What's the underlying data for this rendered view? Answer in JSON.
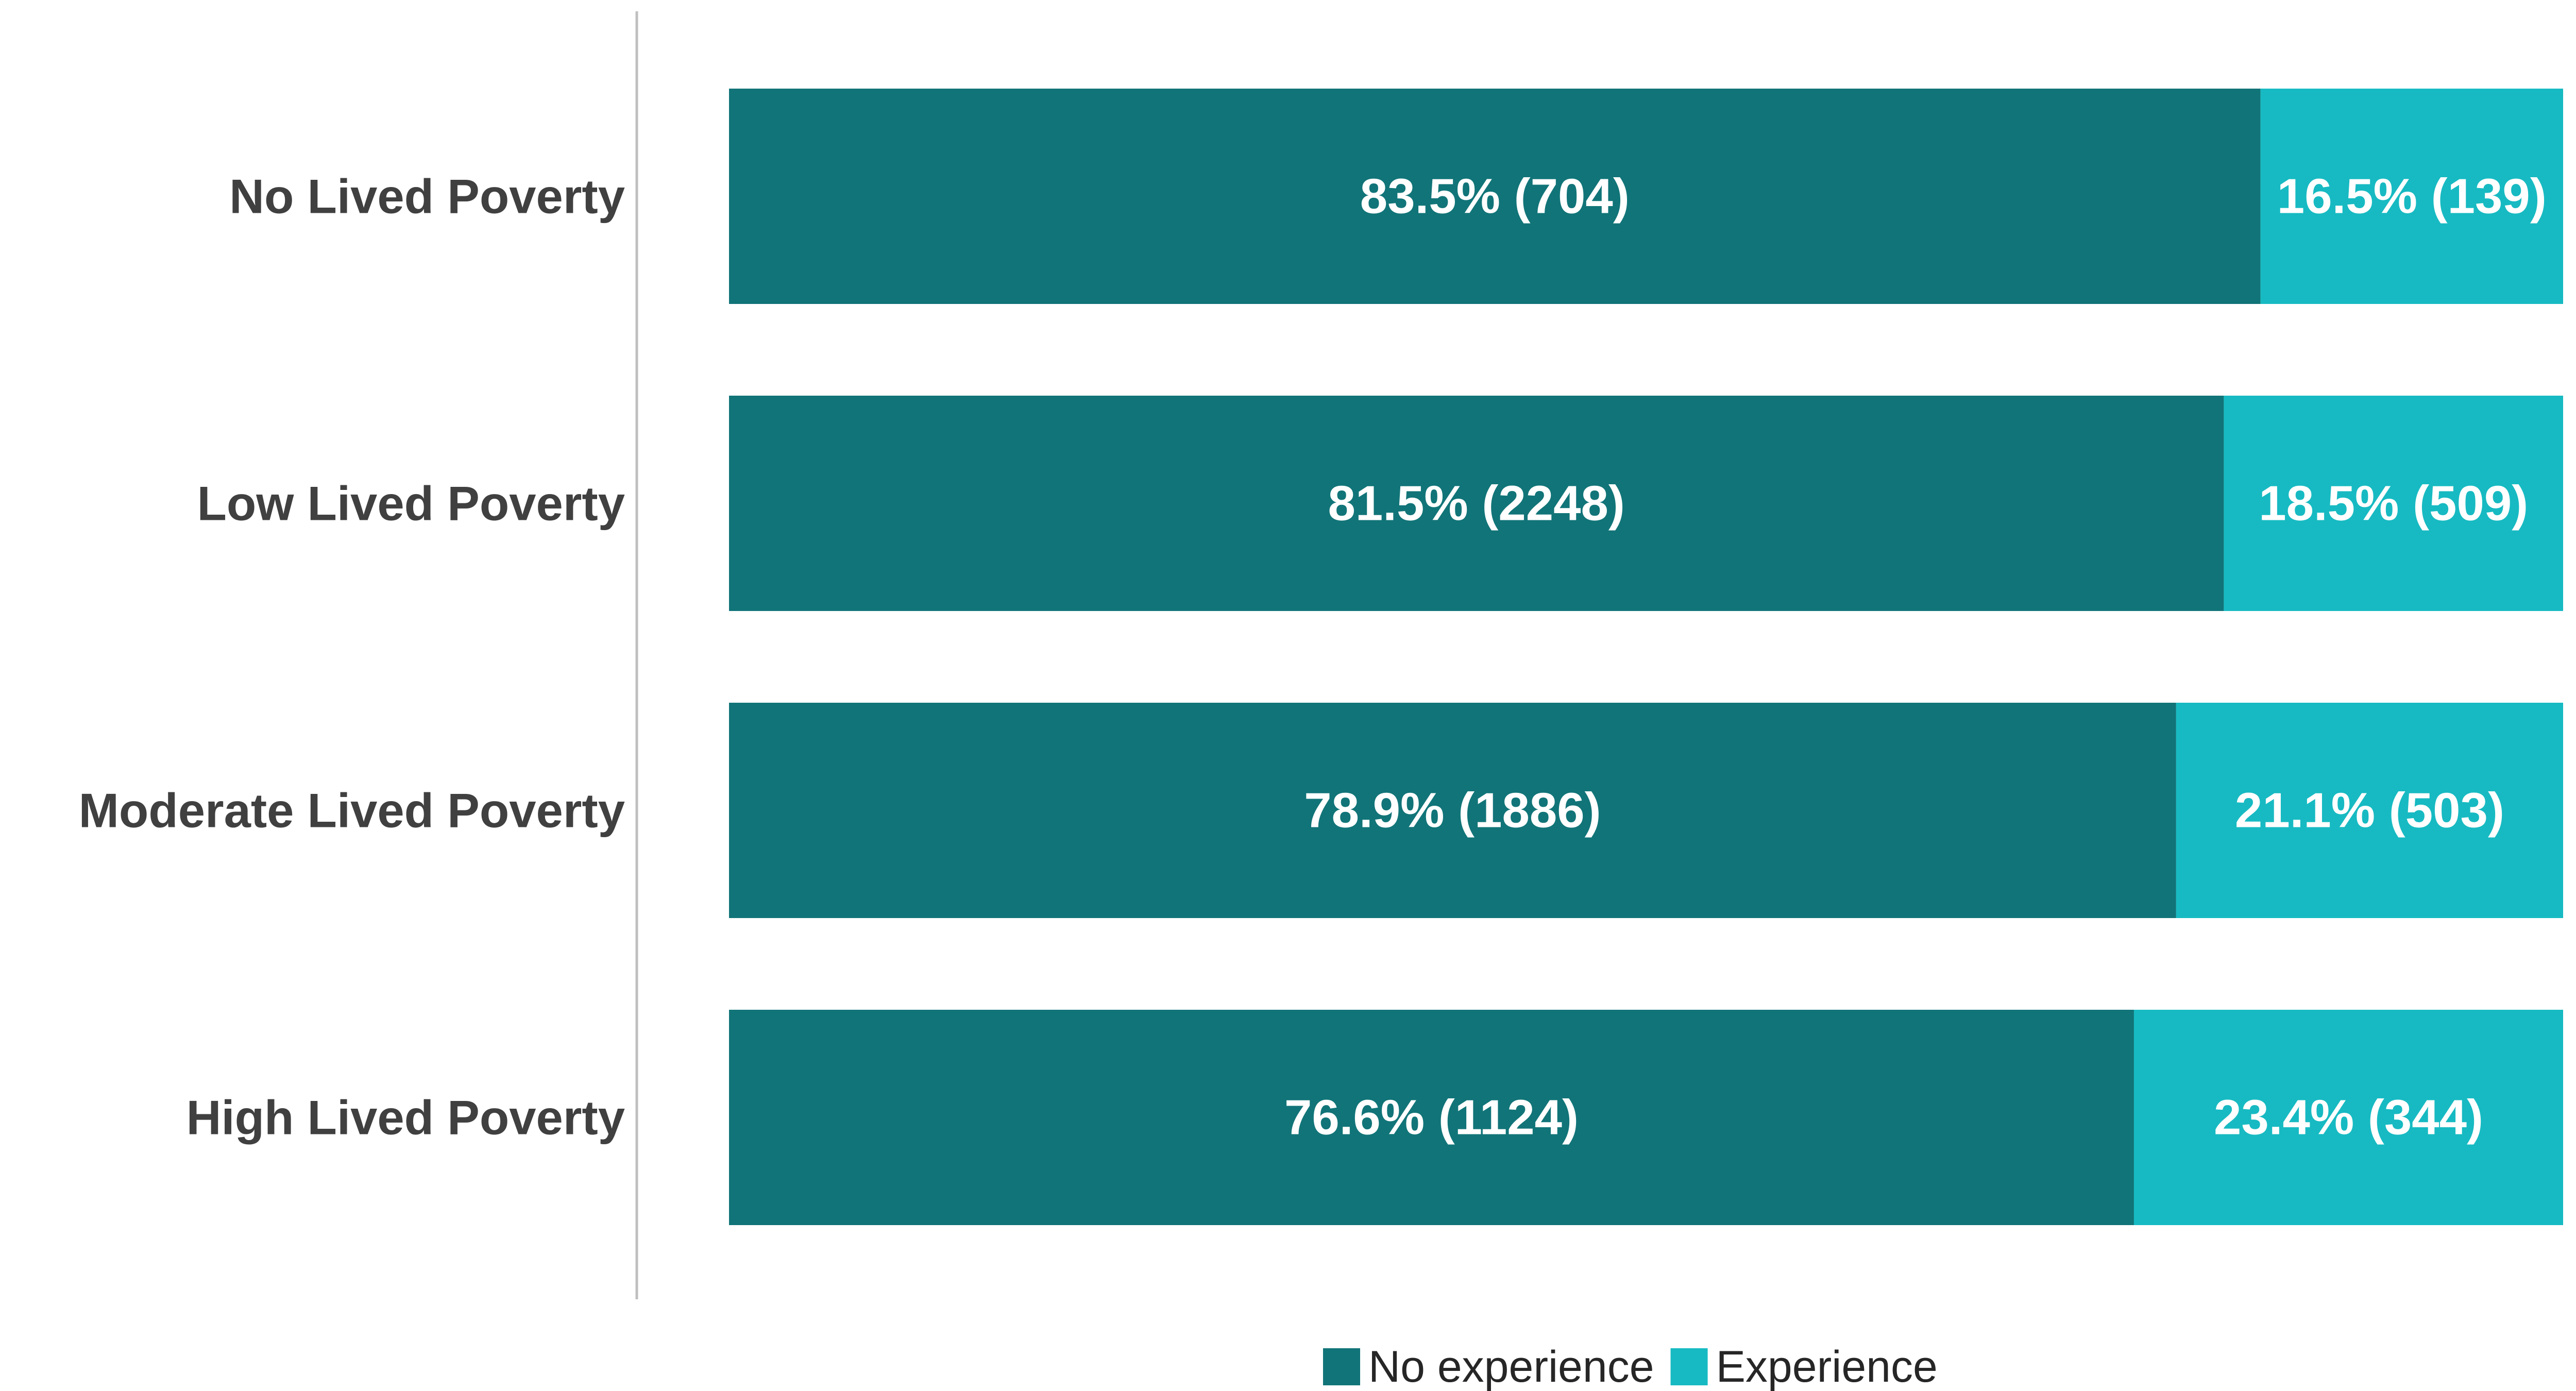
{
  "chart_data": {
    "type": "bar",
    "orientation": "horizontal",
    "stacked": true,
    "percent_stacked": true,
    "categories": [
      "No Lived Poverty",
      "Low Lived Poverty",
      "Moderate Lived Poverty",
      "High Lived Poverty"
    ],
    "series": [
      {
        "name": "No experience",
        "color": "#117478",
        "values": [
          83.5,
          81.5,
          78.9,
          76.6
        ],
        "counts": [
          704,
          2248,
          1886,
          1124
        ],
        "labels": [
          "83.5% (704)",
          "81.5% (2248)",
          "78.9% (1886)",
          "76.6% (1124)"
        ]
      },
      {
        "name": "Experience",
        "color": "#17BAC2",
        "values": [
          16.5,
          18.5,
          21.1,
          23.4
        ],
        "counts": [
          139,
          509,
          503,
          344
        ],
        "labels": [
          "16.5% (139)",
          "18.5% (509)",
          "21.1% (503)",
          "23.4% (344)"
        ]
      }
    ],
    "xlim": [
      0,
      100
    ],
    "title": "",
    "xlabel": "",
    "ylabel": "",
    "grid": false,
    "legend": "bottom"
  }
}
